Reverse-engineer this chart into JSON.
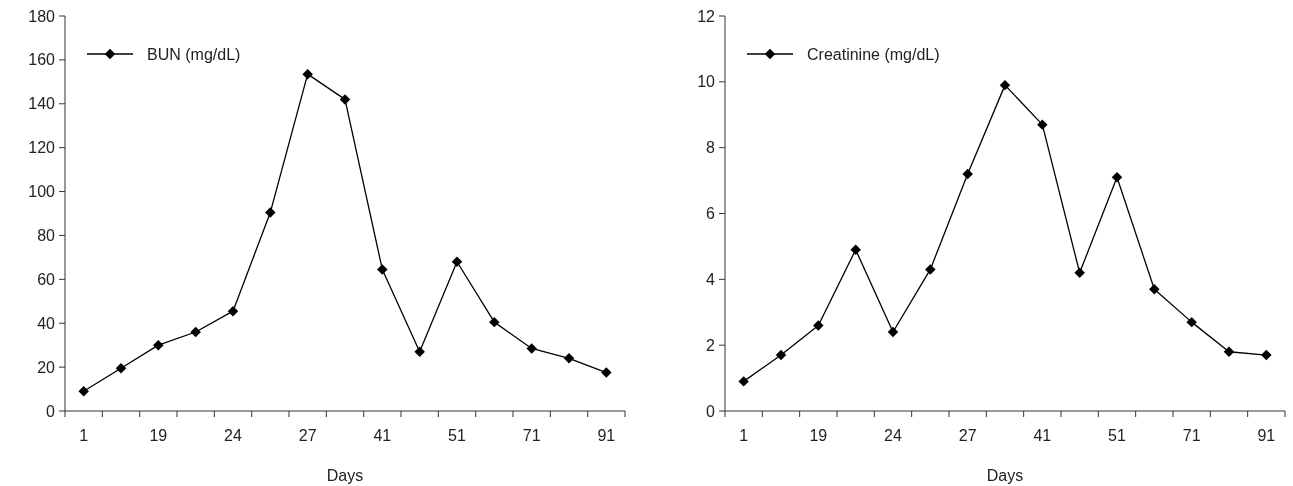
{
  "chart_data": [
    {
      "type": "line",
      "xlabel": "Days",
      "categories": [
        "1",
        null,
        "19",
        null,
        "24",
        null,
        "27",
        null,
        "41",
        null,
        "51",
        null,
        "71",
        null,
        "91"
      ],
      "series": [
        {
          "name": "BUN (mg/dL)",
          "color": "#000000",
          "values": [
            9,
            19.5,
            30,
            36,
            45.5,
            90.5,
            153.5,
            142,
            64.5,
            27,
            68,
            40.5,
            28.5,
            24,
            17.5
          ]
        }
      ],
      "ylim": [
        0,
        180
      ],
      "yticks": [
        0,
        20,
        40,
        60,
        80,
        100,
        120,
        140,
        160,
        180
      ],
      "grid": false,
      "legend": "top left",
      "marker": "diamond",
      "line_style": "solid"
    },
    {
      "type": "line",
      "xlabel": "Days",
      "categories": [
        "1",
        null,
        "19",
        null,
        "24",
        null,
        "27",
        null,
        "41",
        null,
        "51",
        null,
        "71",
        null,
        "91"
      ],
      "series": [
        {
          "name": "Creatinine (mg/dL)",
          "color": "#000000",
          "values": [
            0.9,
            1.7,
            2.6,
            4.9,
            2.4,
            4.3,
            7.2,
            9.9,
            8.7,
            4.2,
            7.1,
            3.7,
            2.7,
            1.8,
            1.7
          ]
        }
      ],
      "ylim": [
        0,
        12
      ],
      "yticks": [
        0,
        2,
        4,
        6,
        8,
        10,
        12
      ],
      "grid": false,
      "legend": "top left",
      "marker": "diamond",
      "line_style": "solid"
    }
  ]
}
